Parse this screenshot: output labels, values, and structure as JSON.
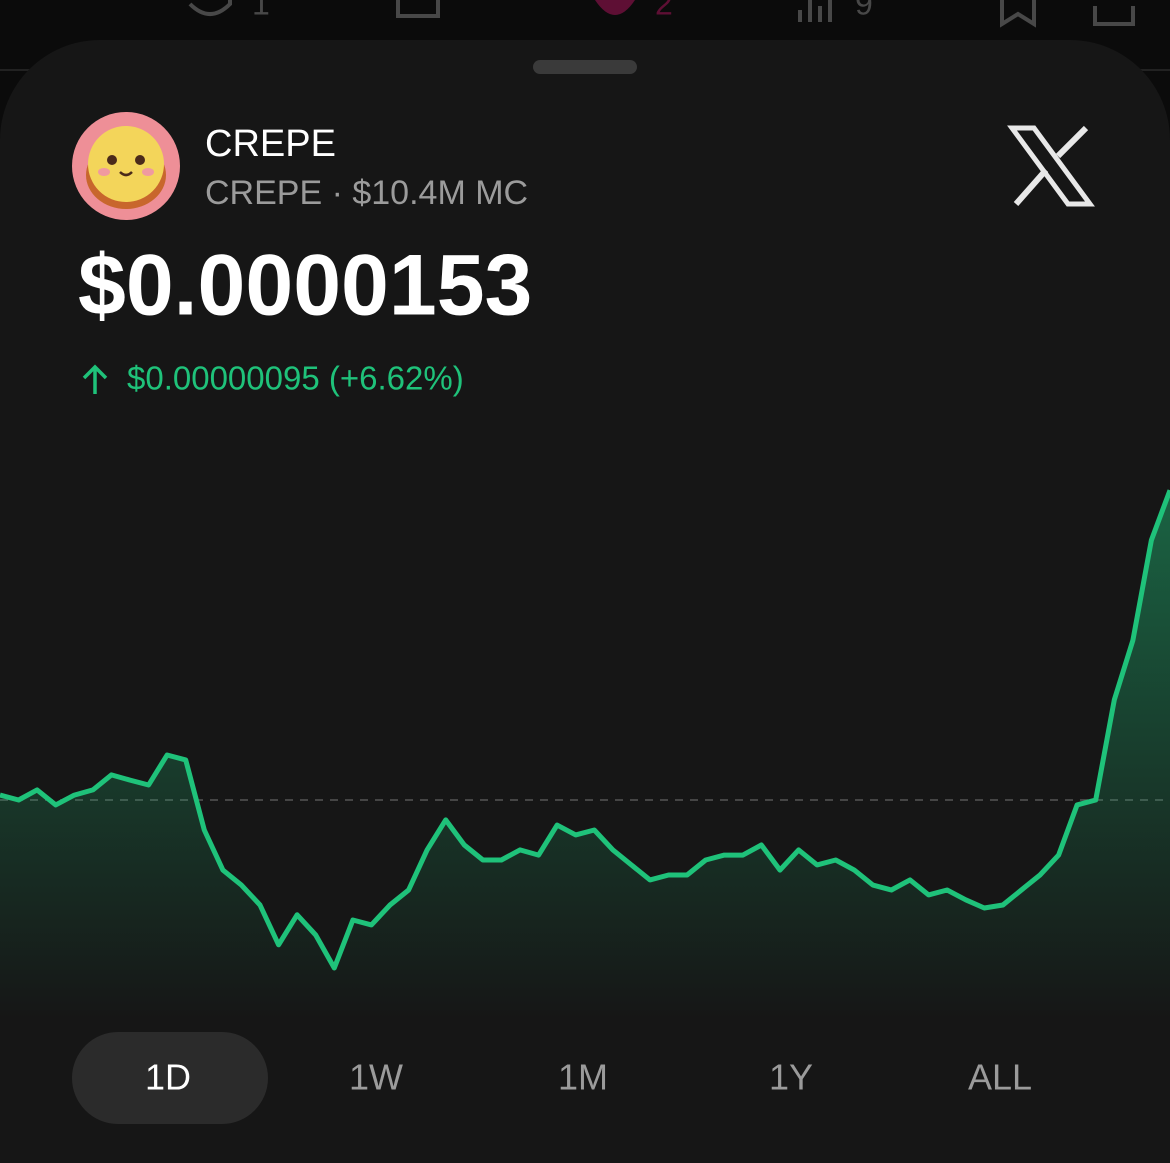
{
  "top_bar": {
    "replies": "1",
    "likes": "2",
    "views": "9"
  },
  "token": {
    "name": "CREPE",
    "market_line": "CREPE · $10.4M MC",
    "price": "$0.0000153",
    "change": "$0.00000095 (+6.62%)"
  },
  "chart_data": {
    "type": "area",
    "series": [
      {
        "color": "#1fc27a",
        "values": [
          1.4365e-05,
          1.435e-05,
          1.4381e-05,
          1.4335e-05,
          1.4365e-05,
          1.4381e-05,
          1.4427e-05,
          1.4411e-05,
          1.4396e-05,
          1.4488e-05,
          1.4473e-05,
          1.4258e-05,
          1.4135e-05,
          1.4089e-05,
          1.4028e-05,
          1.3906e-05,
          1.3998e-05,
          1.3936e-05,
          1.3835e-05,
          1.3982e-05,
          1.3967e-05,
          1.4028e-05,
          1.4074e-05,
          1.4197e-05,
          1.4289e-05,
          1.4212e-05,
          1.4166e-05,
          1.4166e-05,
          1.4197e-05,
          1.4181e-05,
          1.4273e-05,
          1.4243e-05,
          1.4258e-05,
          1.4197e-05,
          1.4151e-05,
          1.4105e-05,
          1.412e-05,
          1.412e-05,
          1.4166e-05,
          1.4181e-05,
          1.4181e-05,
          1.4212e-05,
          1.4135e-05,
          1.4197e-05,
          1.4151e-05,
          1.4166e-05,
          1.4135e-05,
          1.4089e-05,
          1.4074e-05,
          1.4105e-05,
          1.4059e-05,
          1.4074e-05,
          1.4044e-05,
          1.4019e-05,
          1.4028e-05,
          1.4074e-05,
          1.412e-05,
          1.4181e-05,
          1.4335e-05,
          1.435e-05,
          1.4657e-05,
          1.484e-05,
          1.5147e-05,
          1.53e-05
        ]
      }
    ],
    "ylim": [
      1.37e-05,
      1.55e-05
    ],
    "baseline": 1.435e-05
  },
  "ranges": {
    "options": [
      "1D",
      "1W",
      "1M",
      "1Y",
      "ALL"
    ],
    "selected": "1D"
  }
}
